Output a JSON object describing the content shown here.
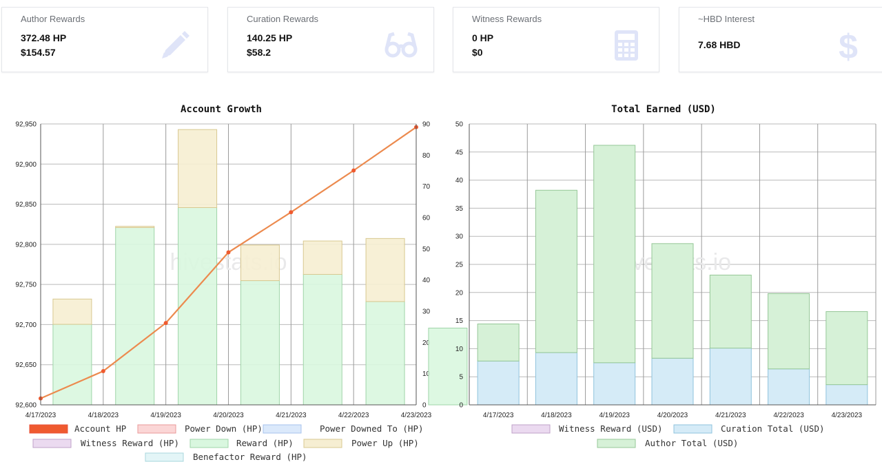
{
  "cards": [
    {
      "title": "Author Rewards",
      "value1": "372.48 HP",
      "value2": "$154.57",
      "icon": "pencil-icon"
    },
    {
      "title": "Curation Rewards",
      "value1": "140.25 HP",
      "value2": "$58.2",
      "icon": "glasses-icon"
    },
    {
      "title": "Witness Rewards",
      "value1": "0 HP",
      "value2": "$0",
      "icon": "calculator-icon"
    },
    {
      "title": "~HBD Interest",
      "value1": "7.68 HBD",
      "icon": "dollar-icon"
    }
  ],
  "colors": {
    "icon": "#dfe4f8",
    "account_hp": "#ef5a2f",
    "line": "#ec8a4e",
    "reward_fill": "#d9f7df",
    "reward_stroke": "#9fd4a8",
    "powerup_fill": "#f6eed2",
    "powerup_stroke": "#d8c890",
    "author_fill": "#d6f1d7",
    "author_stroke": "#95c797",
    "curation_fill": "#d5ebf7",
    "curation_stroke": "#8fc3dd"
  },
  "chart_data": [
    {
      "type": "bar",
      "title": "Account Growth",
      "watermark": "hivestats.io",
      "categories": [
        "4/17/2023",
        "4/18/2023",
        "4/19/2023",
        "4/20/2023",
        "4/21/2023",
        "4/22/2023",
        "4/23/2023"
      ],
      "yticks_left": [
        "92,950",
        "92,900",
        "92,850",
        "92,800",
        "92,750",
        "92,700",
        "92,650",
        "92,600"
      ],
      "yticks_right": [
        "90",
        "80",
        "70",
        "60",
        "50",
        "40",
        "30",
        "20",
        "10",
        "0"
      ],
      "ylim_left": [
        92600,
        92950
      ],
      "ylim_right": [
        0,
        90
      ],
      "series": [
        {
          "name": "Account HP",
          "kind": "line",
          "axis": "left",
          "values": [
            92608,
            92642,
            92702,
            92790,
            92840,
            92892,
            92946
          ]
        },
        {
          "name": "Power Down (HP)",
          "kind": "bar",
          "axis": "right",
          "values": [
            0,
            0,
            0,
            0,
            0,
            0,
            0
          ]
        },
        {
          "name": "Power Downed To (HP)",
          "kind": "bar",
          "axis": "right",
          "values": [
            0,
            0,
            0,
            0,
            0,
            0,
            0
          ]
        },
        {
          "name": "Witness Reward (HP)",
          "kind": "bar",
          "axis": "right",
          "values": [
            0,
            0,
            0,
            0,
            0,
            0,
            0
          ]
        },
        {
          "name": "Reward (HP)",
          "kind": "bar",
          "axis": "right",
          "values": [
            25.8,
            56.8,
            63.2,
            39.8,
            41.8,
            33.1,
            24.6
          ]
        },
        {
          "name": "Power Up (HP)",
          "kind": "bar",
          "axis": "right",
          "values": [
            8.1,
            0.4,
            25.0,
            11.4,
            10.7,
            20.2,
            0
          ]
        },
        {
          "name": "Benefactor Reward (HP)",
          "kind": "bar",
          "axis": "right",
          "values": [
            0,
            0,
            0,
            0,
            0,
            0,
            0
          ]
        }
      ]
    },
    {
      "type": "bar",
      "title": "Total Earned (USD)",
      "watermark": "hivestats.io",
      "categories": [
        "4/17/2023",
        "4/18/2023",
        "4/19/2023",
        "4/20/2023",
        "4/21/2023",
        "4/22/2023",
        "4/23/2023"
      ],
      "yticks": [
        "50",
        "45",
        "40",
        "35",
        "30",
        "25",
        "20",
        "15",
        "10",
        "5",
        "0"
      ],
      "ylim": [
        0,
        50
      ],
      "series": [
        {
          "name": "Witness Reward (USD)",
          "values": [
            0,
            0,
            0,
            0,
            0,
            0,
            0
          ]
        },
        {
          "name": "Curation Total (USD)",
          "values": [
            7.8,
            9.3,
            7.5,
            8.3,
            10.1,
            6.4,
            3.6
          ]
        },
        {
          "name": "Author Total (USD)",
          "values": [
            6.6,
            28.9,
            38.7,
            20.4,
            13.0,
            13.4,
            13.0
          ]
        }
      ]
    }
  ]
}
